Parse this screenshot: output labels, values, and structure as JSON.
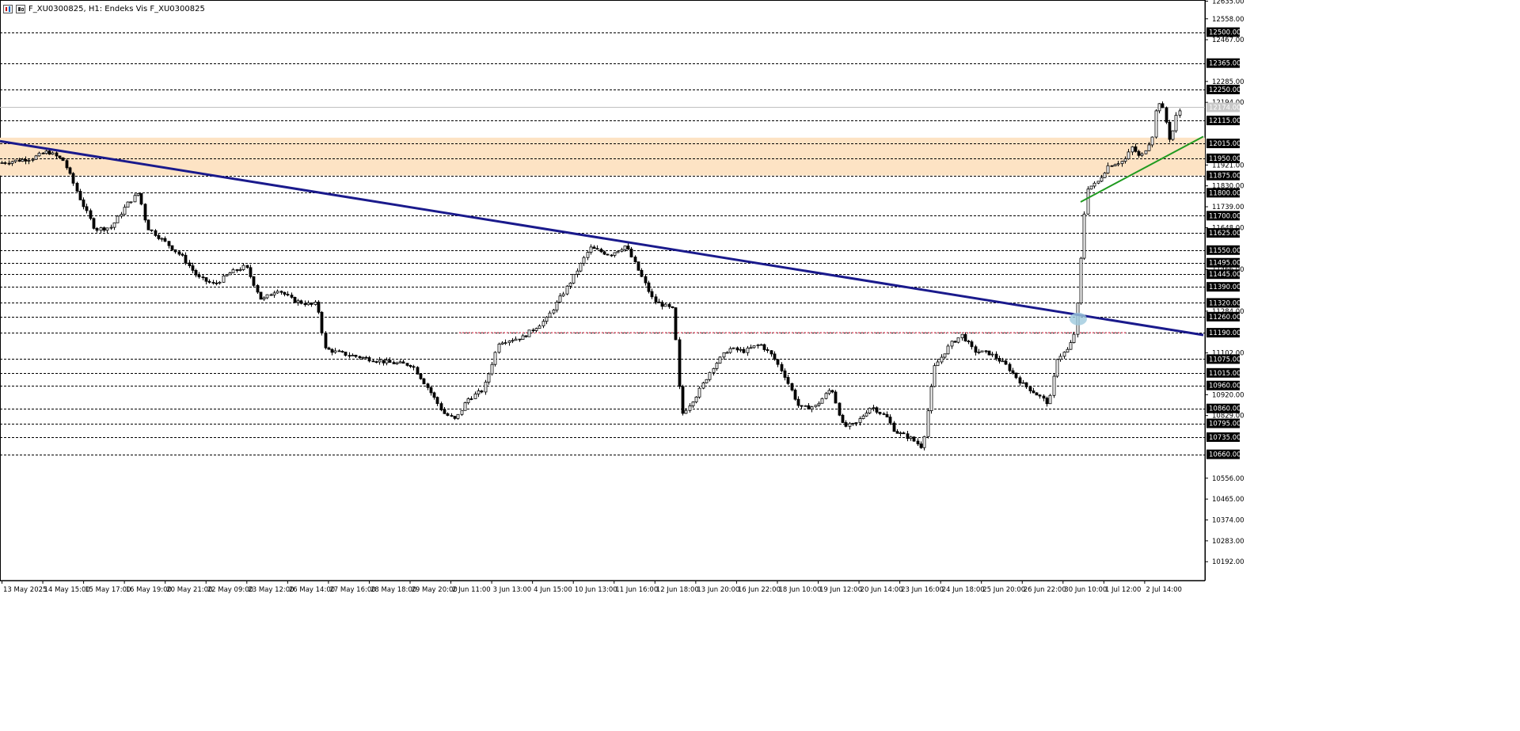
{
  "header": {
    "title": "F_XU0300825, H1:  Endeks Vis F_XU0300825"
  },
  "colors": {
    "background": "#ffffff",
    "grid": "#000000",
    "candle": "#000000",
    "zone_fill": "#fde3c4",
    "trendline_main": "#1a1a8c",
    "support_line": "#e27a8a",
    "trendline_up": "#1f9a1f",
    "breakout_marker": "#9ec9dd",
    "current_price_line": "#c0c0c0"
  },
  "chart_data": {
    "type": "candlestick",
    "symbol": "F_XU0300825",
    "timeframe": "H1",
    "ylim": [
      10110,
      12640
    ],
    "y_ticks": [
      "12635.00",
      "12558.00",
      "12467.00",
      "12285.00",
      "12194.00",
      "11921.00",
      "11830.00",
      "11739.00",
      "11648.00",
      "11466.00",
      "11284.00",
      "11102.00",
      "10920.00",
      "10829.00",
      "10556.00",
      "10465.00",
      "10374.00",
      "10283.00",
      "10192.00"
    ],
    "level_lines": [
      "12500.00",
      "12365.00",
      "12250.00",
      "12115.00",
      "12015.00",
      "11950.00",
      "11875.00",
      "11800.00",
      "11700.00",
      "11625.00",
      "11550.00",
      "11495.00",
      "11445.00",
      "11390.00",
      "11320.00",
      "11260.00",
      "11190.00",
      "11075.00",
      "11015.00",
      "10960.00",
      "10860.00",
      "10795.00",
      "10735.00",
      "10660.00"
    ],
    "current_price": "12174.00",
    "x_labels": [
      "13 May 2025",
      "14 May 15:00",
      "15 May 17:00",
      "16 May 19:00",
      "20 May 21:00",
      "22 May 09:00",
      "23 May 12:00",
      "26 May 14:00",
      "27 May 16:00",
      "28 May 18:00",
      "29 May 20:00",
      "2 Jun 11:00",
      "3 Jun 13:00",
      "4 Jun 15:00",
      "10 Jun 13:00",
      "11 Jun 16:00",
      "12 Jun 18:00",
      "13 Jun 20:00",
      "16 Jun 22:00",
      "18 Jun 10:00",
      "19 Jun 12:00",
      "20 Jun 14:00",
      "23 Jun 16:00",
      "24 Jun 18:00",
      "25 Jun 20:00",
      "26 Jun 22:00",
      "30 Jun 10:00",
      "1 Jul 12:00",
      "2 Jul 14:00"
    ],
    "price_path": [
      [
        0,
        11930
      ],
      [
        40,
        11950
      ],
      [
        60,
        11980
      ],
      [
        80,
        11940
      ],
      [
        100,
        11780
      ],
      [
        120,
        11640
      ],
      [
        140,
        11650
      ],
      [
        160,
        11750
      ],
      [
        175,
        11800
      ],
      [
        185,
        11650
      ],
      [
        210,
        11580
      ],
      [
        230,
        11520
      ],
      [
        250,
        11430
      ],
      [
        270,
        11400
      ],
      [
        290,
        11450
      ],
      [
        310,
        11480
      ],
      [
        330,
        11330
      ],
      [
        350,
        11380
      ],
      [
        370,
        11330
      ],
      [
        395,
        11310
      ],
      [
        400,
        11320
      ],
      [
        410,
        11120
      ],
      [
        430,
        11100
      ],
      [
        460,
        11080
      ],
      [
        490,
        11060
      ],
      [
        520,
        11050
      ],
      [
        540,
        10950
      ],
      [
        560,
        10840
      ],
      [
        575,
        10810
      ],
      [
        590,
        10900
      ],
      [
        610,
        10940
      ],
      [
        630,
        11150
      ],
      [
        660,
        11170
      ],
      [
        690,
        11250
      ],
      [
        720,
        11410
      ],
      [
        745,
        11560
      ],
      [
        770,
        11530
      ],
      [
        790,
        11570
      ],
      [
        805,
        11470
      ],
      [
        825,
        11330
      ],
      [
        850,
        11290
      ],
      [
        855,
        11090
      ],
      [
        860,
        10830
      ],
      [
        880,
        10920
      ],
      [
        900,
        11040
      ],
      [
        920,
        11120
      ],
      [
        940,
        11110
      ],
      [
        960,
        11140
      ],
      [
        975,
        11090
      ],
      [
        990,
        11010
      ],
      [
        1010,
        10860
      ],
      [
        1030,
        10870
      ],
      [
        1050,
        10950
      ],
      [
        1065,
        10780
      ],
      [
        1080,
        10790
      ],
      [
        1100,
        10870
      ],
      [
        1120,
        10820
      ],
      [
        1130,
        10760
      ],
      [
        1150,
        10730
      ],
      [
        1165,
        10690
      ],
      [
        1172,
        10860
      ],
      [
        1180,
        11040
      ],
      [
        1200,
        11140
      ],
      [
        1215,
        11180
      ],
      [
        1230,
        11110
      ],
      [
        1250,
        11100
      ],
      [
        1270,
        11050
      ],
      [
        1290,
        10970
      ],
      [
        1310,
        10920
      ],
      [
        1325,
        10880
      ],
      [
        1335,
        11080
      ],
      [
        1350,
        11120
      ],
      [
        1358,
        11200
      ],
      [
        1362,
        11360
      ],
      [
        1368,
        11650
      ],
      [
        1372,
        11820
      ],
      [
        1385,
        11840
      ],
      [
        1400,
        11920
      ],
      [
        1420,
        11940
      ],
      [
        1430,
        12000
      ],
      [
        1440,
        11950
      ],
      [
        1455,
        12040
      ],
      [
        1462,
        12210
      ],
      [
        1470,
        12150
      ],
      [
        1478,
        12020
      ],
      [
        1485,
        12130
      ],
      [
        1492,
        12170
      ]
    ],
    "resistance_zone": [
      11875,
      12040
    ],
    "support_level": 11190,
    "trendline_down": [
      [
        0,
        12025
      ],
      [
        1520,
        11180
      ]
    ],
    "trendline_up": [
      [
        1365,
        11760
      ],
      [
        1520,
        12045
      ]
    ],
    "breakout_point": [
      1362,
      11250
    ]
  }
}
